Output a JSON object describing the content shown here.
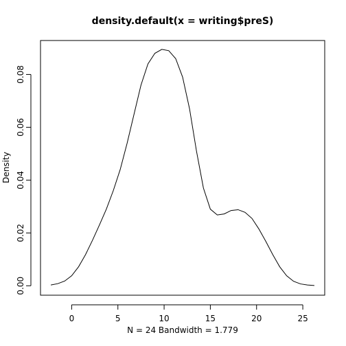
{
  "chart_data": {
    "type": "line",
    "title": "density.default(x = writing$preS)",
    "xlabel": "N = 24   Bandwidth = 1.779",
    "ylabel": "Density",
    "xlim": [
      -3.37,
      27.37
    ],
    "ylim": [
      -0.00357,
      0.09285
    ],
    "xticks": [
      0,
      5,
      10,
      15,
      20,
      25
    ],
    "xtick_labels": [
      "0",
      "5",
      "10",
      "15",
      "20",
      "25"
    ],
    "yticks": [
      0.0,
      0.02,
      0.04,
      0.06,
      0.08
    ],
    "ytick_labels": [
      "0.00",
      "0.02",
      "0.04",
      "0.06",
      "0.08"
    ],
    "grid": false,
    "series": [
      {
        "x": [
          -2.25,
          -1.5,
          -0.75,
          0,
          0.75,
          1.5,
          2.25,
          3.0,
          3.75,
          4.5,
          5.25,
          6.0,
          6.75,
          7.5,
          8.25,
          9.0,
          9.75,
          10.5,
          11.25,
          12.0,
          12.75,
          13.5,
          14.25,
          15.0,
          15.75,
          16.5,
          17.25,
          18.0,
          18.75,
          19.5,
          20.25,
          21.0,
          21.75,
          22.5,
          23.25,
          24.0,
          24.75,
          25.5,
          26.25
        ],
        "y": [
          0.0003,
          0.0008,
          0.0018,
          0.0038,
          0.0072,
          0.0118,
          0.0172,
          0.023,
          0.029,
          0.036,
          0.044,
          0.054,
          0.065,
          0.076,
          0.084,
          0.088,
          0.0895,
          0.089,
          0.086,
          0.079,
          0.067,
          0.051,
          0.037,
          0.029,
          0.0268,
          0.0272,
          0.0285,
          0.0288,
          0.0278,
          0.0255,
          0.0215,
          0.0168,
          0.0118,
          0.0072,
          0.0038,
          0.0017,
          0.0007,
          0.0003,
          0.0001
        ],
        "color": "#000000"
      }
    ]
  }
}
